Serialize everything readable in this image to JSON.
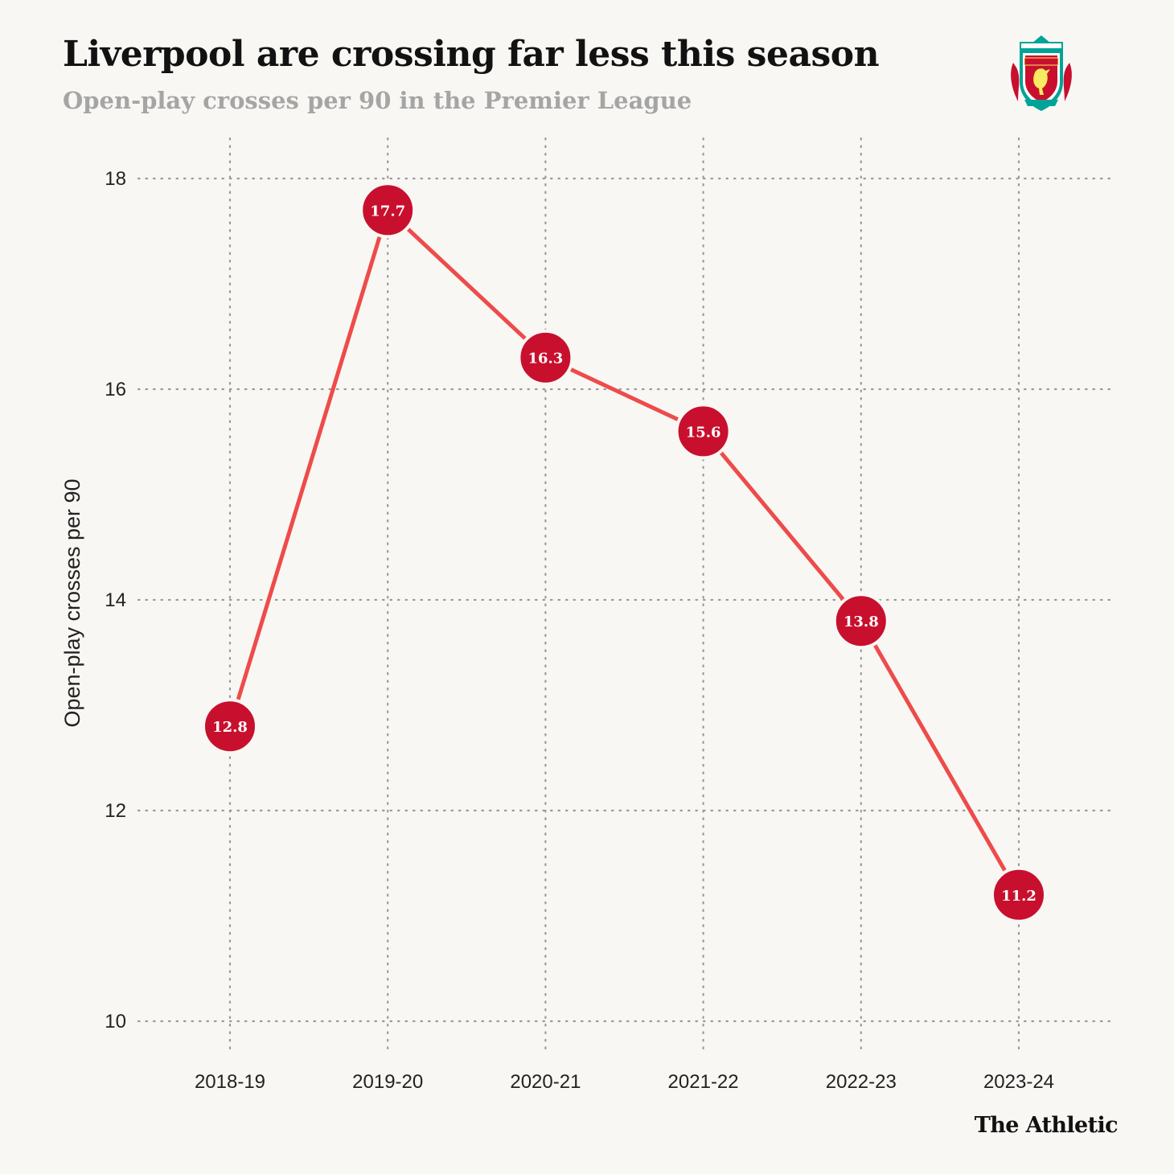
{
  "title": "Liverpool are crossing far less this season",
  "subtitle": "Open-play crosses per 90 in the Premier League",
  "credit": "The Athletic",
  "logo": {
    "icon": "liverpool-crest-icon",
    "colors": {
      "red": "#c8102e",
      "green": "#00a398",
      "gold": "#f6eb61"
    }
  },
  "colors": {
    "line": "#ee4b4b",
    "marker": "#c8102e",
    "grid": "#9a9a9a",
    "background": "#f8f7f3"
  },
  "chart_data": {
    "type": "line",
    "title": "Liverpool are crossing far less this season",
    "subtitle": "Open-play crosses per 90 in the Premier League",
    "xlabel": "",
    "ylabel": "Open-play crosses per 90",
    "categories": [
      "2018-19",
      "2019-20",
      "2020-21",
      "2021-22",
      "2022-23",
      "2023-24"
    ],
    "series": [
      {
        "values": [
          12.8,
          17.7,
          16.3,
          15.6,
          13.8,
          11.2
        ],
        "data_labels": [
          "12.8",
          "17.7",
          "16.3",
          "15.6",
          "13.8",
          "11.2"
        ]
      }
    ],
    "ylim": [
      10,
      18
    ],
    "yticks": [
      10,
      12,
      14,
      16,
      18
    ],
    "ytick_labels": [
      "10",
      "12",
      "14",
      "16",
      "18"
    ],
    "grid": true,
    "grid_style": "dotted",
    "legend": "none"
  }
}
